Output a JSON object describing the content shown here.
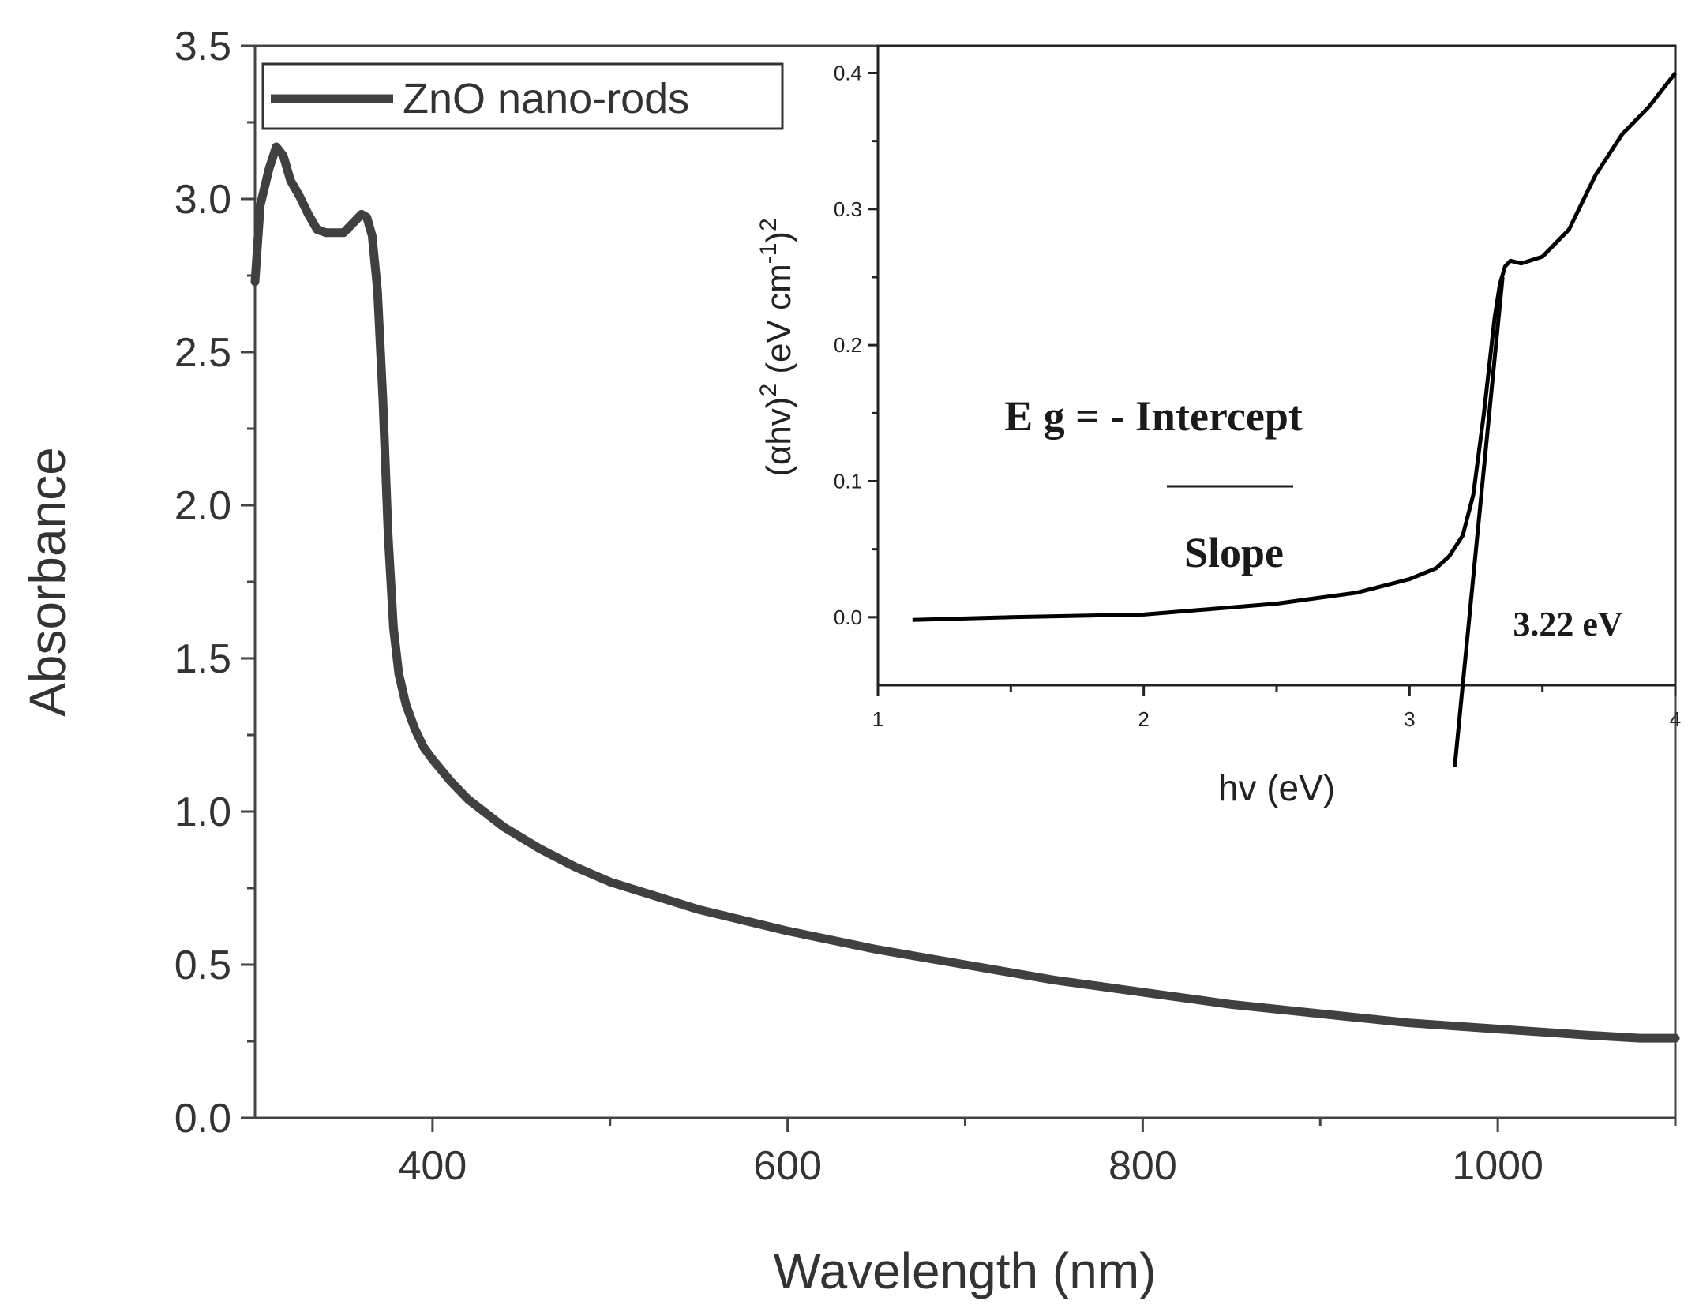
{
  "chart_data": [
    {
      "type": "line",
      "xlabel": "Wavelength (nm)",
      "ylabel": "Absorbance",
      "xlim": [
        300,
        1100
      ],
      "ylim": [
        0,
        3.5
      ],
      "x_ticks": [
        {
          "value": 400,
          "label": "400"
        },
        {
          "value": 600,
          "label": "600"
        },
        {
          "value": 800,
          "label": "800"
        },
        {
          "value": 1000,
          "label": "1000"
        }
      ],
      "y_ticks": [
        {
          "value": 0.0,
          "label": "0.0"
        },
        {
          "value": 0.5,
          "label": "0.5"
        },
        {
          "value": 1.0,
          "label": "1.0"
        },
        {
          "value": 1.5,
          "label": "1.5"
        },
        {
          "value": 2.0,
          "label": "2.0"
        },
        {
          "value": 2.5,
          "label": "2.5"
        },
        {
          "value": 3.0,
          "label": "3.0"
        },
        {
          "value": 3.5,
          "label": "3.5"
        }
      ],
      "legend": {
        "position": "top-left",
        "entries": [
          "ZnO nano-rods"
        ]
      },
      "series": [
        {
          "name": "ZnO nano-rods",
          "color": "#404040",
          "x": [
            300,
            303,
            308,
            312,
            316,
            320,
            325,
            330,
            335,
            340,
            345,
            350,
            355,
            360,
            363,
            366,
            369,
            372,
            375,
            378,
            381,
            385,
            390,
            395,
            400,
            410,
            420,
            440,
            460,
            480,
            500,
            550,
            600,
            650,
            700,
            750,
            800,
            850,
            900,
            950,
            1000,
            1050,
            1080,
            1100
          ],
          "y": [
            2.73,
            2.98,
            3.1,
            3.17,
            3.14,
            3.06,
            3.01,
            2.95,
            2.9,
            2.89,
            2.89,
            2.89,
            2.92,
            2.95,
            2.94,
            2.88,
            2.7,
            2.35,
            1.9,
            1.6,
            1.45,
            1.35,
            1.27,
            1.21,
            1.17,
            1.1,
            1.04,
            0.95,
            0.88,
            0.82,
            0.77,
            0.68,
            0.61,
            0.55,
            0.5,
            0.45,
            0.41,
            0.37,
            0.34,
            0.31,
            0.29,
            0.27,
            0.26,
            0.26
          ]
        }
      ]
    },
    {
      "type": "line",
      "placement": "inset top-right",
      "xlabel": "hv (eV)",
      "ylabel_parts": {
        "base": "(αhv)",
        "sup1": "2",
        "mid": " (eV cm",
        "sup2": "-1",
        "close": ")",
        "sup3": "2"
      },
      "xlim": [
        1,
        4
      ],
      "ylim": [
        -0.05,
        0.42
      ],
      "x_ticks": [
        {
          "value": 1,
          "label": "1"
        },
        {
          "value": 2,
          "label": "2"
        },
        {
          "value": 3,
          "label": "3"
        },
        {
          "value": 4,
          "label": "4"
        }
      ],
      "y_ticks": [
        {
          "value": 0.0,
          "label": "0.0"
        },
        {
          "value": 0.1,
          "label": "0.1"
        },
        {
          "value": 0.2,
          "label": "0.2"
        },
        {
          "value": 0.3,
          "label": "0.3"
        },
        {
          "value": 0.4,
          "label": "0.4"
        }
      ],
      "series": [
        {
          "name": "(αhv)^2",
          "color": "#000000",
          "x": [
            1.13,
            1.5,
            2.0,
            2.5,
            2.8,
            3.0,
            3.1,
            3.15,
            3.2,
            3.24,
            3.28,
            3.32,
            3.34,
            3.36,
            3.38,
            3.42,
            3.5,
            3.6,
            3.7,
            3.8,
            3.9,
            4.0
          ],
          "y": [
            -0.002,
            0.0,
            0.002,
            0.01,
            0.018,
            0.028,
            0.036,
            0.045,
            0.06,
            0.09,
            0.15,
            0.22,
            0.245,
            0.258,
            0.262,
            0.26,
            0.265,
            0.285,
            0.325,
            0.355,
            0.375,
            0.4
          ]
        },
        {
          "name": "linear fit",
          "color": "#000000",
          "x": [
            3.17,
            3.35
          ],
          "y": [
            -0.11,
            0.25
          ]
        }
      ],
      "annotations": {
        "formula_numerator": "E g = - Intercept",
        "formula_denominator": "Slope",
        "bandgap": "3.22 eV"
      }
    }
  ]
}
